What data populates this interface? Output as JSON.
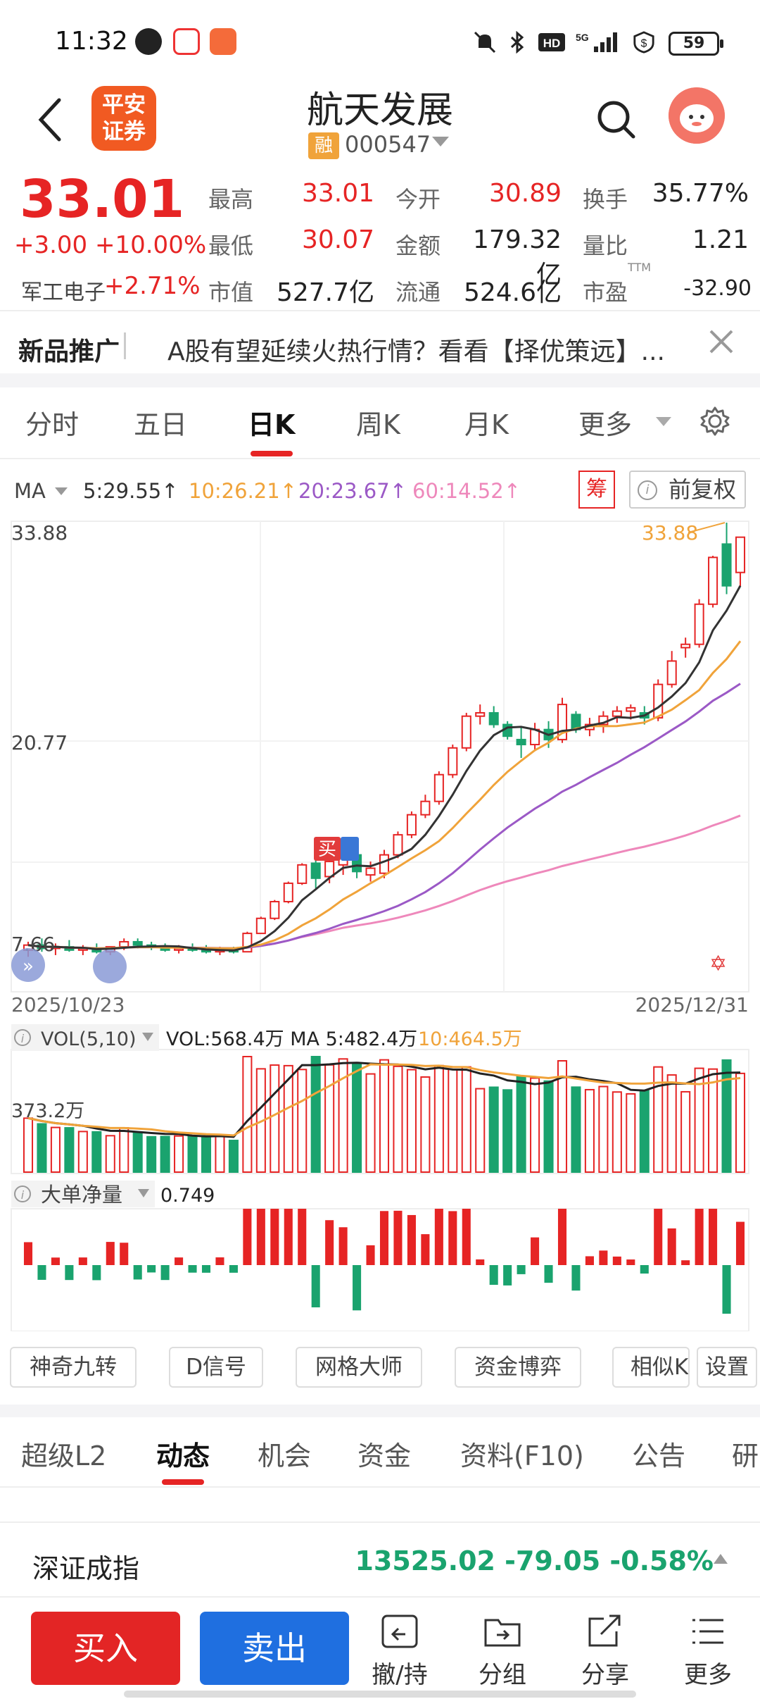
{
  "status_bar": {
    "time": "11:32",
    "battery": "59"
  },
  "header": {
    "logo_text_1": "平安",
    "logo_text_2": "证券",
    "stock_name": "航天发展",
    "margin_badge": "融",
    "stock_code": "000547"
  },
  "quote": {
    "price": "33.01",
    "change": "+3.00  +10.00%",
    "sector_label": "军工电子",
    "sector_pct": "+2.71%",
    "fields": [
      {
        "label": "最高",
        "value": "33.01",
        "color": "red"
      },
      {
        "label": "今开",
        "value": "30.89",
        "color": "red"
      },
      {
        "label": "换手",
        "value": "35.77%",
        "color": "black"
      },
      {
        "label": "最低",
        "value": "30.07",
        "color": "red"
      },
      {
        "label": "金额",
        "value": "179.32亿",
        "color": "black"
      },
      {
        "label": "量比",
        "value": "1.21",
        "color": "black"
      },
      {
        "label": "市值",
        "value": "527.7亿",
        "color": "black"
      },
      {
        "label": "流通",
        "value": "524.6亿",
        "color": "black"
      },
      {
        "label": "市盈",
        "value": "-32.90",
        "color": "black"
      }
    ],
    "pe_sup": "TTM"
  },
  "promo": {
    "title": "新品推广",
    "text": "A股有望延续火热行情？看看【择优策远】..."
  },
  "chart_tabs": [
    "分时",
    "五日",
    "日K",
    "周K",
    "月K",
    "更多"
  ],
  "ma_row": {
    "label": "MA",
    "ma5": "5:29.55↑",
    "ma10": "10:26.21↑",
    "ma20": "20:23.67↑",
    "ma60": "60:14.52↑",
    "chip_btn": "筹",
    "adjust_btn": "前复权"
  },
  "chart_text": {
    "y_top": "33.88",
    "y_mid": "20.77",
    "y_low": "7.66",
    "max_marker": "33.88",
    "date_start": "2025/10/23",
    "date_end": "2025/12/31",
    "buy_tag": "买",
    "vol_label": "VOL(5,10)",
    "vol_values": "VOL:568.4万 MA 5:482.4万",
    "vol_ma10": "10:464.5万",
    "vol_axis": "373.2万",
    "bigorder_label": "大单净量",
    "bigorder_value": "0.749"
  },
  "indicator_buttons": [
    "神奇九转",
    "D信号",
    "网格大师",
    "资金博弈",
    "相似K",
    "设置"
  ],
  "bottom_tabs": [
    "超级L2",
    "动态",
    "机会",
    "资金",
    "资料(F10)",
    "公告",
    "研"
  ],
  "index": {
    "name": "深证成指",
    "value": "13525.02  -79.05  -0.58%"
  },
  "bottom_bar": {
    "buy": "买入",
    "sell": "卖出",
    "items": [
      "撤/持",
      "分组",
      "分享",
      "更多"
    ]
  },
  "colors": {
    "up": "#e62424",
    "down": "#1aa36e",
    "ma5": "#333333",
    "ma10": "#f0a33a",
    "ma20": "#9b59c6",
    "ma60": "#ee88bb"
  },
  "chart_data": {
    "type": "candlestick",
    "x_range": [
      "2025/10/23",
      "2025/12/31"
    ],
    "y_ticks": [
      33.88,
      20.77,
      7.66
    ],
    "candles": [
      {
        "o": 8.3,
        "h": 8.8,
        "l": 7.9,
        "c": 8.6
      },
      {
        "o": 8.6,
        "h": 9.0,
        "l": 8.2,
        "c": 8.4
      },
      {
        "o": 8.4,
        "h": 8.7,
        "l": 8.0,
        "c": 8.5
      },
      {
        "o": 8.5,
        "h": 8.9,
        "l": 8.2,
        "c": 8.3
      },
      {
        "o": 8.3,
        "h": 8.6,
        "l": 8.0,
        "c": 8.4
      },
      {
        "o": 8.4,
        "h": 8.7,
        "l": 8.1,
        "c": 8.2
      },
      {
        "o": 8.2,
        "h": 8.5,
        "l": 8.0,
        "c": 8.5
      },
      {
        "o": 8.5,
        "h": 9.0,
        "l": 8.3,
        "c": 8.8
      },
      {
        "o": 8.8,
        "h": 9.0,
        "l": 8.4,
        "c": 8.6
      },
      {
        "o": 8.6,
        "h": 8.8,
        "l": 8.3,
        "c": 8.5
      },
      {
        "o": 8.5,
        "h": 8.7,
        "l": 8.2,
        "c": 8.3
      },
      {
        "o": 8.3,
        "h": 8.6,
        "l": 8.1,
        "c": 8.4
      },
      {
        "o": 8.4,
        "h": 8.7,
        "l": 8.2,
        "c": 8.3
      },
      {
        "o": 8.3,
        "h": 8.6,
        "l": 8.1,
        "c": 8.2
      },
      {
        "o": 8.2,
        "h": 8.5,
        "l": 8.0,
        "c": 8.3
      },
      {
        "o": 8.3,
        "h": 8.5,
        "l": 8.1,
        "c": 8.2
      },
      {
        "o": 8.2,
        "h": 9.4,
        "l": 8.2,
        "c": 9.3
      },
      {
        "o": 9.3,
        "h": 10.3,
        "l": 9.3,
        "c": 10.2
      },
      {
        "o": 10.2,
        "h": 11.3,
        "l": 10.1,
        "c": 11.2
      },
      {
        "o": 11.2,
        "h": 12.4,
        "l": 11.1,
        "c": 12.3
      },
      {
        "o": 12.3,
        "h": 13.5,
        "l": 12.2,
        "c": 13.4
      },
      {
        "o": 13.5,
        "h": 14.2,
        "l": 12.0,
        "c": 12.6
      },
      {
        "o": 12.7,
        "h": 13.8,
        "l": 12.3,
        "c": 13.6
      },
      {
        "o": 13.4,
        "h": 14.6,
        "l": 12.8,
        "c": 14.2
      },
      {
        "o": 14.0,
        "h": 14.3,
        "l": 12.6,
        "c": 13.0
      },
      {
        "o": 12.8,
        "h": 13.6,
        "l": 12.4,
        "c": 13.2
      },
      {
        "o": 12.9,
        "h": 14.3,
        "l": 12.6,
        "c": 14.0
      },
      {
        "o": 14.0,
        "h": 15.4,
        "l": 13.8,
        "c": 15.2
      },
      {
        "o": 15.2,
        "h": 16.6,
        "l": 15.0,
        "c": 16.4
      },
      {
        "o": 16.4,
        "h": 17.6,
        "l": 16.2,
        "c": 17.2
      },
      {
        "o": 17.2,
        "h": 19.0,
        "l": 17.0,
        "c": 18.8
      },
      {
        "o": 18.8,
        "h": 20.6,
        "l": 18.6,
        "c": 20.4
      },
      {
        "o": 20.4,
        "h": 22.5,
        "l": 20.2,
        "c": 22.3
      },
      {
        "o": 22.3,
        "h": 23.0,
        "l": 21.8,
        "c": 22.5
      },
      {
        "o": 22.5,
        "h": 22.9,
        "l": 21.6,
        "c": 21.8
      },
      {
        "o": 21.8,
        "h": 22.0,
        "l": 20.9,
        "c": 21.1
      },
      {
        "o": 20.9,
        "h": 21.6,
        "l": 19.8,
        "c": 20.6
      },
      {
        "o": 20.6,
        "h": 21.9,
        "l": 20.2,
        "c": 21.5
      },
      {
        "o": 21.5,
        "h": 22.0,
        "l": 20.4,
        "c": 20.9
      },
      {
        "o": 20.9,
        "h": 23.4,
        "l": 20.7,
        "c": 23.0
      },
      {
        "o": 22.4,
        "h": 22.6,
        "l": 21.3,
        "c": 21.5
      },
      {
        "o": 21.5,
        "h": 22.2,
        "l": 21.1,
        "c": 21.8
      },
      {
        "o": 21.8,
        "h": 22.6,
        "l": 21.3,
        "c": 22.3
      },
      {
        "o": 22.3,
        "h": 22.9,
        "l": 21.9,
        "c": 22.6
      },
      {
        "o": 22.6,
        "h": 23.0,
        "l": 22.1,
        "c": 22.8
      },
      {
        "o": 22.5,
        "h": 22.9,
        "l": 21.8,
        "c": 22.2
      },
      {
        "o": 22.2,
        "h": 24.5,
        "l": 22.0,
        "c": 24.2
      },
      {
        "o": 24.2,
        "h": 26.2,
        "l": 24.0,
        "c": 25.6
      },
      {
        "o": 26.4,
        "h": 27.0,
        "l": 25.8,
        "c": 26.6
      },
      {
        "o": 26.6,
        "h": 29.3,
        "l": 26.4,
        "c": 29.0
      },
      {
        "o": 29.0,
        "h": 31.9,
        "l": 28.8,
        "c": 31.8
      },
      {
        "o": 32.6,
        "h": 33.88,
        "l": 29.6,
        "c": 30.1
      },
      {
        "o": 30.9,
        "h": 33.01,
        "l": 30.07,
        "c": 33.01
      }
    ],
    "volume_axis": "373.2万"
  }
}
